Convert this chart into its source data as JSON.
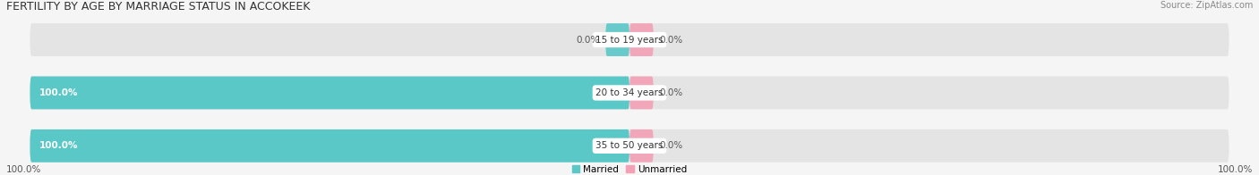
{
  "title": "FERTILITY BY AGE BY MARRIAGE STATUS IN ACCOKEEK",
  "source": "Source: ZipAtlas.com",
  "categories": [
    "15 to 19 years",
    "20 to 34 years",
    "35 to 50 years"
  ],
  "married_values": [
    0.0,
    100.0,
    100.0
  ],
  "unmarried_values": [
    0.0,
    0.0,
    0.0
  ],
  "small_married_pct": 5.0,
  "small_unmarried_pct": 5.0,
  "married_color": "#5bc8c8",
  "unmarried_color": "#f4a0b5",
  "bar_bg_color": "#e4e4e4",
  "bar_height": 0.62,
  "title_fontsize": 9.0,
  "label_fontsize": 7.5,
  "source_fontsize": 7.0,
  "background_color": "#f5f5f5",
  "left_axis_label": "100.0%",
  "right_axis_label": "100.0%"
}
